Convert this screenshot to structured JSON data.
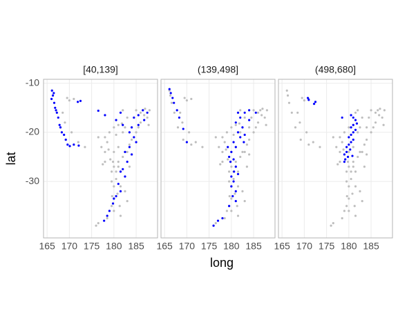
{
  "chart_data": {
    "type": "scatter",
    "xlabel": "long",
    "ylabel": "lat",
    "xlim": [
      164.2,
      189.8
    ],
    "ylim": [
      -41.5,
      -9.2
    ],
    "xticks": [
      165,
      170,
      175,
      180,
      185
    ],
    "yticks": [
      -10,
      -20,
      -30
    ],
    "grid": true,
    "background": {
      "color": "#bebebe",
      "x": [
        185,
        186,
        187,
        188,
        187.5,
        186,
        185,
        184,
        183.5,
        183,
        182,
        181,
        180,
        179.5,
        180.5,
        181.5,
        180.8,
        179.6,
        181.3,
        180,
        178.5,
        176,
        178,
        178,
        178.5,
        179,
        180,
        182,
        183,
        182,
        184,
        171,
        170,
        169.5,
        168.5,
        169,
        170.5,
        172,
        173.5,
        176.5,
        178,
        177.5,
        182.5,
        183,
        181.5,
        166.1,
        166.3,
        166.6,
        167.2,
        168,
        169.2,
        171,
        186.5,
        184.5,
        184,
        182.5,
        181.5,
        180,
        179,
        181.5,
        182.5,
        181,
        180,
        179.8,
        181,
        180.5,
        180,
        179.5,
        181,
        180.5,
        179.2,
        181.8,
        176.5,
        177.2,
        178.8,
        179.5,
        183.5,
        185.5,
        186.8,
        187.8
      ],
      "y": [
        -15.5,
        -16,
        -15.2,
        -15.5,
        -17,
        -18,
        -20,
        -21.5,
        -22.5,
        -24,
        -25,
        -26,
        -27,
        -28,
        -29.5,
        -31,
        -32.5,
        -33,
        -35,
        -36,
        -37.5,
        -39,
        -26,
        -24,
        -22,
        -20,
        -19,
        -15.5,
        -17,
        -20,
        -19,
        -13.2,
        -13.5,
        -13,
        -16,
        -18,
        -20,
        -22,
        -23,
        -21,
        -21,
        -26.5,
        -32,
        -34,
        -37,
        -11.5,
        -12.5,
        -14,
        -16,
        -19,
        -21.5,
        -22.5,
        -15.5,
        -17,
        -24.5,
        -24,
        -28,
        -33.5,
        -36,
        -16,
        -19,
        -23,
        -24,
        -26,
        -27,
        -28,
        -31,
        -35,
        -18.5,
        -20.5,
        -25.5,
        -18.2,
        -38.5,
        -23,
        -23.5,
        -30,
        -27,
        -19,
        -16.5,
        -18.5
      ]
    },
    "facets": [
      {
        "title": "[40,139]",
        "color": "#0000ff",
        "x": [
          166.1,
          166.3,
          166,
          166.6,
          166.8,
          167.2,
          167,
          167.5,
          168,
          168.3,
          168.8,
          169.2,
          169.6,
          170.1,
          171,
          172.1,
          172.5,
          171.9,
          167.8,
          166.5,
          186.5,
          187.5,
          185.5,
          184.5,
          185.5,
          186.8,
          184,
          183.5,
          184.5,
          185,
          183.5,
          184,
          182.5,
          183,
          182,
          181.5,
          182.5,
          181,
          181.5,
          180.5,
          180,
          179.8,
          179,
          178.5,
          177.8,
          176.5,
          178,
          181.5,
          180.5,
          182
        ],
        "y": [
          -11.5,
          -12.5,
          -13.2,
          -14,
          -15,
          -16,
          -15.5,
          -17,
          -19,
          -20,
          -20.5,
          -21.5,
          -22.5,
          -22.8,
          -22.5,
          -22.7,
          -13.6,
          -13.8,
          -18.5,
          -12,
          -15.5,
          -16,
          -16.5,
          -17,
          -18.5,
          -17.5,
          -19,
          -20,
          -21,
          -22,
          -23,
          -24.5,
          -24,
          -26,
          -27.5,
          -28,
          -29,
          -30.5,
          -32,
          -33,
          -33.5,
          -34.5,
          -36,
          -37,
          -38,
          -15.6,
          -16.5,
          -16,
          -17.5,
          -18.5
        ]
      },
      {
        "title": "(139,498]",
        "color": "#0000ff",
        "x": [
          166.1,
          166.4,
          166.8,
          167.1,
          167.8,
          168.3,
          169.2,
          170,
          181.5,
          182,
          183,
          184,
          185.5,
          181,
          182.5,
          181.5,
          182,
          183,
          180.5,
          181,
          180,
          179.5,
          179.8,
          180.5,
          181,
          180.6,
          180,
          181.5,
          180.5,
          180,
          181,
          180.3,
          181,
          179.5,
          178,
          177,
          176,
          184,
          182.8,
          179.2
        ],
        "y": [
          -11.2,
          -12,
          -13,
          -14,
          -15.5,
          -17,
          -19.3,
          -22,
          -16,
          -17,
          -16,
          -15.5,
          -16,
          -18,
          -19,
          -20,
          -21,
          -20.5,
          -22,
          -23,
          -24,
          -25,
          -26,
          -25.5,
          -27,
          -28,
          -29,
          -28.5,
          -30,
          -31,
          -32,
          -33,
          -34,
          -35,
          -37.5,
          -38,
          -39,
          -17.5,
          -22,
          -23
        ]
      },
      {
        "title": "(498,680]",
        "color": "#0000ff",
        "x": [
          170.8,
          171,
          172.5,
          172.2,
          178.5,
          180.5,
          181,
          181.5,
          181,
          180.5,
          181.5,
          181,
          180.5,
          180,
          181,
          180.5,
          180,
          179.5,
          180.3,
          179.5,
          179,
          179.8,
          179.2,
          179,
          180.8,
          181.8
        ],
        "y": [
          -13,
          -13.4,
          -13.8,
          -14.2,
          -17,
          -16.5,
          -17,
          -17.5,
          -18.5,
          -19,
          -19.5,
          -20,
          -20.5,
          -21,
          -21.5,
          -22,
          -22.5,
          -23,
          -23.5,
          -24,
          -24.5,
          -25,
          -25.5,
          -26,
          -24.8,
          -18.2
        ]
      }
    ]
  }
}
